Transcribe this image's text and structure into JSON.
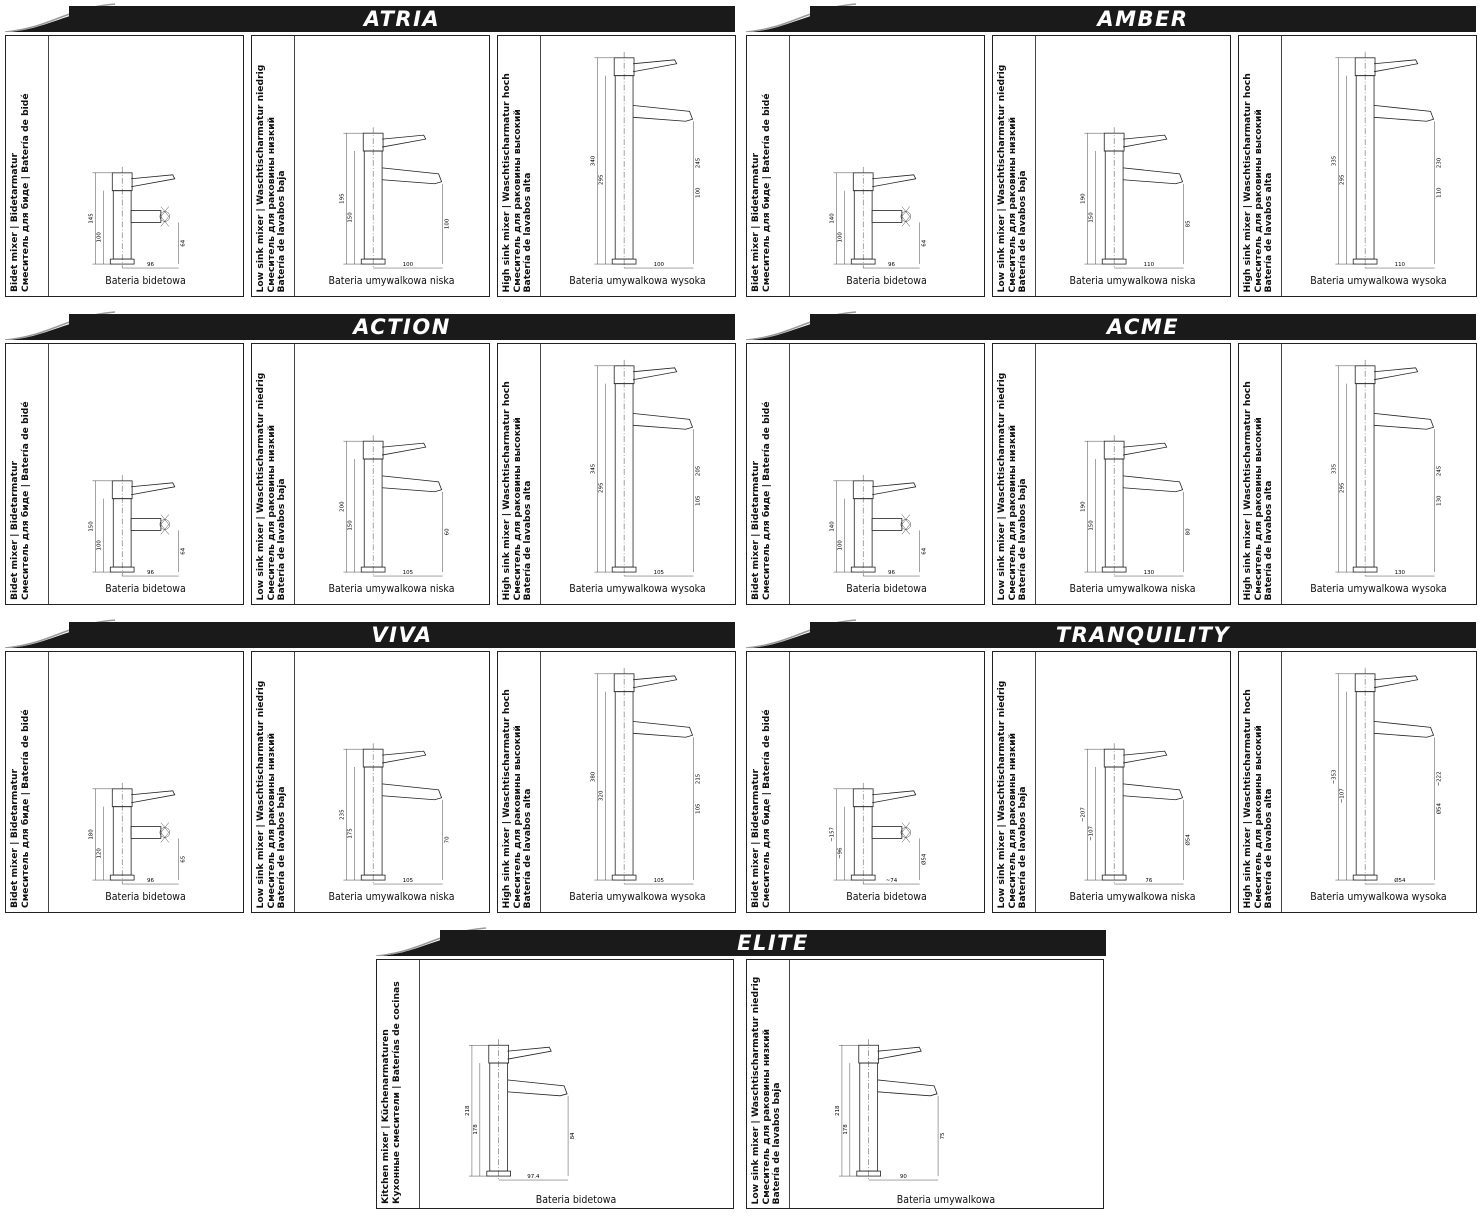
{
  "labels": {
    "bidet_side": [
      "Bidet mixer | Bidetarmatur",
      "Смеситель для биде | Batería de bidé"
    ],
    "low_side": [
      "Low sink mixer | Waschtischarmatur niedrig",
      "Смеситель для раковины низкий",
      "Batería de lavabos baja"
    ],
    "high_side": [
      "High sink mixer | Waschtischarmatur hoch",
      "Смеситель для раковины высокий",
      "Batería de lavabos alta"
    ],
    "kitchen_side": [
      "Kitchen mixer | Küchenarmaturen",
      "Кухонные смесители | Baterías de cocinas"
    ],
    "cap_bidet": "Bateria bidetowa",
    "cap_low": "Bateria umywalkowa niska",
    "cap_high": "Bateria umywalkowa wysoka",
    "cap_generic": "Bateria umywalkowa"
  },
  "groups": [
    {
      "title": "ATRIA",
      "cards": [
        {
          "type": "bidet",
          "dims": [
            "145",
            "100",
            "96",
            "64"
          ]
        },
        {
          "type": "low",
          "dims": [
            "195",
            "150",
            "100",
            "100"
          ]
        },
        {
          "type": "high",
          "dims": [
            "340",
            "295",
            "245",
            "100"
          ]
        }
      ]
    },
    {
      "title": "AMBER",
      "cards": [
        {
          "type": "bidet",
          "dims": [
            "140",
            "100",
            "96",
            "64"
          ]
        },
        {
          "type": "low",
          "dims": [
            "190",
            "150",
            "110",
            "85"
          ]
        },
        {
          "type": "high",
          "dims": [
            "335",
            "295",
            "230",
            "110"
          ]
        }
      ]
    },
    {
      "title": "ACTION",
      "cards": [
        {
          "type": "bidet",
          "dims": [
            "150",
            "100",
            "96",
            "64"
          ]
        },
        {
          "type": "low",
          "dims": [
            "200",
            "150",
            "105",
            "60"
          ]
        },
        {
          "type": "high",
          "dims": [
            "345",
            "295",
            "205",
            "105"
          ]
        }
      ]
    },
    {
      "title": "ACME",
      "cards": [
        {
          "type": "bidet",
          "dims": [
            "140",
            "100",
            "96",
            "64"
          ]
        },
        {
          "type": "low",
          "dims": [
            "190",
            "150",
            "130",
            "80"
          ]
        },
        {
          "type": "high",
          "dims": [
            "335",
            "295",
            "245",
            "130"
          ]
        }
      ]
    },
    {
      "title": "VIVA",
      "cards": [
        {
          "type": "bidet",
          "dims": [
            "180",
            "120",
            "96",
            "65"
          ]
        },
        {
          "type": "low",
          "dims": [
            "235",
            "175",
            "105",
            "70"
          ]
        },
        {
          "type": "high",
          "dims": [
            "380",
            "320",
            "215",
            "105"
          ]
        }
      ]
    },
    {
      "title": "TRANQUILITY",
      "cards": [
        {
          "type": "bidet",
          "dims": [
            "~157",
            "~96",
            "~74",
            "Ø54"
          ]
        },
        {
          "type": "low",
          "dims": [
            "~207",
            "~107",
            "76",
            "Ø54"
          ]
        },
        {
          "type": "high",
          "dims": [
            "~353",
            "~107",
            "~222",
            "Ø54"
          ]
        }
      ]
    }
  ],
  "elite": {
    "title": "ELITE",
    "cards": [
      {
        "type": "kitchen",
        "caption": "Bateria bidetowa",
        "dims": [
          "218",
          "178",
          "97.4",
          "84"
        ]
      },
      {
        "type": "low",
        "caption": "Bateria umywalkowa",
        "dims": [
          "218",
          "178",
          "90",
          "75"
        ]
      }
    ]
  }
}
